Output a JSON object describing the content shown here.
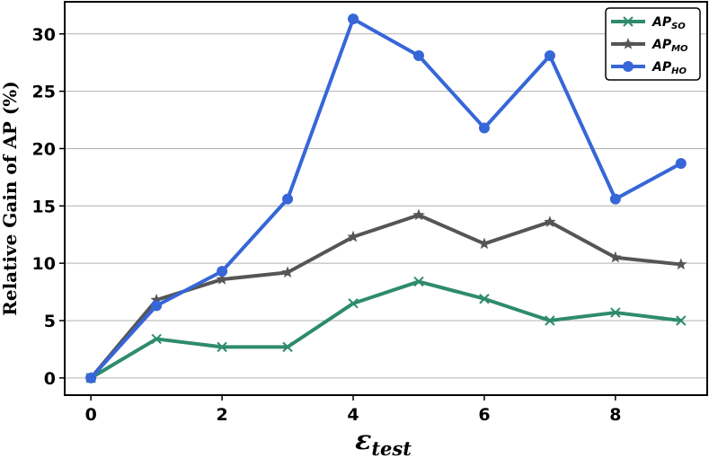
{
  "chart_data": {
    "type": "line",
    "xlabel_main": "ε",
    "xlabel_sub": "test",
    "ylabel": "Relative Gain of AP (%)",
    "x": [
      0,
      1,
      2,
      3,
      4,
      5,
      6,
      7,
      8,
      9
    ],
    "xlim": [
      -0.4,
      9.4
    ],
    "ylim": [
      -1.5,
      32.8
    ],
    "xticks": [
      0,
      2,
      4,
      6,
      8
    ],
    "yticks": [
      0,
      5,
      10,
      15,
      20,
      25,
      30
    ],
    "grid": "horizontal",
    "legend_placement": "top-right",
    "series": [
      {
        "name": "AP",
        "sub": "SO",
        "color": "#2e8b6e",
        "marker": "x",
        "values": [
          0,
          3.4,
          2.7,
          2.7,
          6.5,
          8.4,
          6.9,
          5.0,
          5.7,
          5.0
        ]
      },
      {
        "name": "AP",
        "sub": "MO",
        "color": "#555555",
        "marker": "star",
        "values": [
          0,
          6.8,
          8.6,
          9.2,
          12.3,
          14.2,
          11.7,
          13.6,
          10.5,
          9.9
        ]
      },
      {
        "name": "AP",
        "sub": "HO",
        "color": "#3766d8",
        "marker": "circle",
        "values": [
          0,
          6.3,
          9.3,
          15.6,
          31.3,
          28.1,
          21.8,
          28.1,
          15.6,
          18.7
        ]
      }
    ]
  }
}
